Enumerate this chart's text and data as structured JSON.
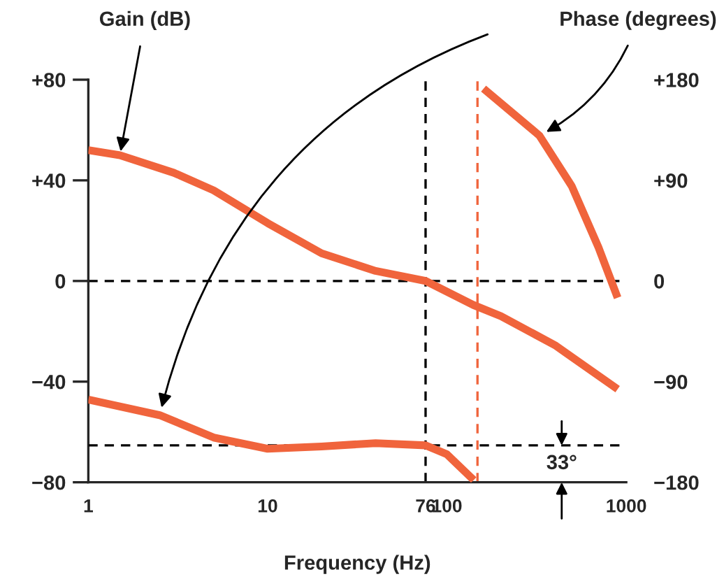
{
  "chart_data": {
    "type": "line",
    "xlabel": "Frequency (Hz)",
    "ylabel": "Gain (dB)",
    "y2label": "Phase (degrees)",
    "log": "x",
    "grid": false,
    "legend": false,
    "marker": "none",
    "line_style": "solid",
    "xlim": [
      1,
      1000
    ],
    "xticks": [
      1,
      10,
      76,
      100,
      1000
    ],
    "ylim": [
      -80,
      80
    ],
    "yticks": [
      {
        "value": 80,
        "label": "+80"
      },
      {
        "value": 40,
        "label": "+40"
      },
      0,
      {
        "value": -40,
        "label": "−40"
      },
      {
        "value": -80,
        "label": "−80"
      }
    ],
    "y2lim": [
      -180,
      180
    ],
    "y2ticks": [
      {
        "value": 180,
        "label": "+180"
      },
      {
        "value": 90,
        "label": "+90"
      },
      0,
      {
        "value": -90,
        "label": "−90"
      },
      {
        "value": -180,
        "label": "−180"
      }
    ],
    "series": [
      {
        "color": "#f0643c",
        "x": [
          1,
          1.5,
          3,
          5,
          10,
          20,
          40,
          76,
          140,
          200,
          400,
          895
        ],
        "values": [
          52,
          50,
          43,
          36,
          23,
          11,
          4,
          0,
          -9.5,
          -14,
          -25.5,
          -43
        ]
      },
      {
        "color": "#f0643c",
        "axis": "y2",
        "x": [
          1,
          2.5,
          5,
          10,
          20,
          40,
          76,
          100,
          141
        ],
        "values": [
          -106,
          -120,
          -140,
          -150,
          -148,
          -145,
          -147,
          -155,
          -178
        ]
      },
      {
        "color": "#f0643c",
        "axis": "y2",
        "x": [
          160,
          328,
          496,
          700,
          895
        ],
        "values": [
          172,
          130,
          85,
          30,
          -15
        ]
      }
    ],
    "ref_lines": [
      {
        "axis": "y",
        "value": 0,
        "color": "#000000",
        "line_style": "dashed"
      },
      {
        "axis": "x",
        "value": 76,
        "color": "#000000",
        "line_style": "dashed"
      },
      {
        "axis": "y2",
        "value": -147,
        "color": "#000000",
        "line_style": "dashed"
      },
      {
        "axis": "x",
        "value": 148,
        "color": "#f0643c",
        "line_style": "dashed"
      }
    ],
    "annotations": [
      "33°"
    ]
  }
}
